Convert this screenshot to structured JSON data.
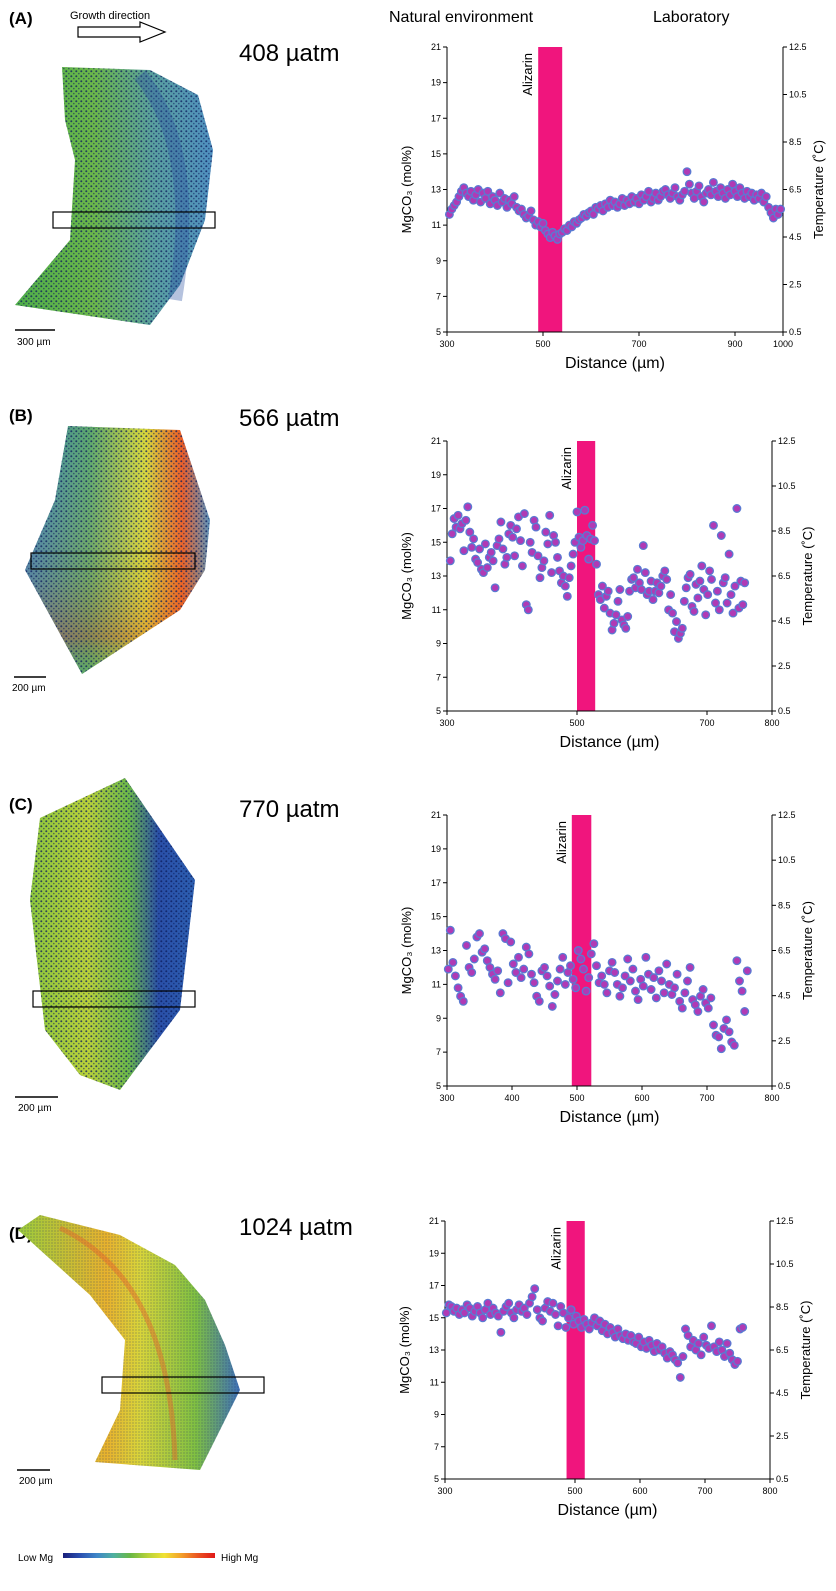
{
  "header": {
    "growth_direction": "Growth direction",
    "natural_environment": "Natural environment",
    "laboratory": "Laboratory"
  },
  "panels": [
    {
      "label": "(A)",
      "pco2": "408 µatm",
      "scale": "300 µm"
    },
    {
      "label": "(B)",
      "pco2": "566 µatm",
      "scale": "200 µm"
    },
    {
      "label": "(C)",
      "pco2": "770 µatm",
      "scale": "200 µm"
    },
    {
      "label": "(D)",
      "pco2": "1024 µatm",
      "scale": "200 µm"
    }
  ],
  "legend": {
    "low": "Low Mg",
    "high": "High Mg",
    "colors": [
      "#1a1f7a",
      "#2a4fb0",
      "#3e86c8",
      "#4fb0a0",
      "#6ab844",
      "#b7d23a",
      "#f0e234",
      "#f3a02a",
      "#ea5322",
      "#e01818"
    ]
  },
  "colors": {
    "alizarin": "#f0157d",
    "point_fill": "#b03ab5",
    "point_edge": "#5a7ad2"
  },
  "chart_data": [
    {
      "type": "scatter",
      "title": "",
      "xlabel": "Distance (µm)",
      "ylabel": "MgCO₃ (mol%)",
      "y2label": "Temperature (˚C)",
      "xlim": [
        300,
        1000
      ],
      "ylim": [
        5,
        21
      ],
      "x_ticks": [
        "300",
        "500",
        "700",
        "900",
        "1000"
      ],
      "y_ticks": [
        "5",
        "7",
        "9",
        "11",
        "13",
        "15",
        "17",
        "19",
        "21"
      ],
      "y2_ticks": [
        "0.5",
        "2.5",
        "4.5",
        "6.5",
        "8.5",
        "10.5",
        "12.5"
      ],
      "grid": false,
      "alizarin_band": {
        "label": "Alizarin",
        "x": [
          490,
          540
        ]
      },
      "x": [
        305,
        310,
        315,
        320,
        325,
        330,
        335,
        340,
        345,
        350,
        355,
        360,
        365,
        370,
        375,
        380,
        385,
        390,
        395,
        400,
        405,
        410,
        415,
        420,
        425,
        430,
        435,
        440,
        445,
        450,
        455,
        460,
        465,
        470,
        475,
        480,
        485,
        490,
        495,
        500,
        505,
        510,
        515,
        520,
        525,
        530,
        535,
        540,
        545,
        550,
        555,
        560,
        565,
        570,
        575,
        580,
        585,
        590,
        595,
        600,
        605,
        610,
        615,
        620,
        625,
        630,
        635,
        640,
        645,
        650,
        655,
        660,
        665,
        670,
        675,
        680,
        685,
        690,
        695,
        700,
        705,
        710,
        715,
        720,
        725,
        730,
        735,
        740,
        745,
        750,
        755,
        760,
        765,
        770,
        775,
        780,
        785,
        790,
        795,
        800,
        805,
        810,
        815,
        820,
        825,
        830,
        835,
        840,
        845,
        850,
        855,
        860,
        865,
        870,
        875,
        880,
        885,
        890,
        895,
        900,
        905,
        910,
        915,
        920,
        925,
        930,
        935,
        940,
        945,
        950,
        955,
        960,
        965,
        970,
        975,
        980,
        985,
        990,
        995
      ],
      "values": [
        11.6,
        11.9,
        12.1,
        12.3,
        12.6,
        12.9,
        13.1,
        12.8,
        12.6,
        12.9,
        12.4,
        12.7,
        13.0,
        12.3,
        12.8,
        12.5,
        12.9,
        12.2,
        12.6,
        12.4,
        12.1,
        12.8,
        12.3,
        12.5,
        12.0,
        12.4,
        12.2,
        12.6,
        12.0,
        11.8,
        11.9,
        11.6,
        11.4,
        11.5,
        11.8,
        11.3,
        11.0,
        11.2,
        10.9,
        11.1,
        10.7,
        10.5,
        10.3,
        10.6,
        10.4,
        10.2,
        10.5,
        10.6,
        10.8,
        10.7,
        11.0,
        10.9,
        11.2,
        11.1,
        11.3,
        11.4,
        11.6,
        11.5,
        11.7,
        11.8,
        11.6,
        12.0,
        11.9,
        12.1,
        11.8,
        12.2,
        12.0,
        12.4,
        12.1,
        12.3,
        12.0,
        12.2,
        12.5,
        12.1,
        12.4,
        12.2,
        12.6,
        12.3,
        12.5,
        12.2,
        12.7,
        12.4,
        12.6,
        12.9,
        12.3,
        12.5,
        12.8,
        12.4,
        12.6,
        12.9,
        13.0,
        12.7,
        12.5,
        12.8,
        13.1,
        12.6,
        12.4,
        12.7,
        12.9,
        14.0,
        13.3,
        12.8,
        12.5,
        12.9,
        13.2,
        12.6,
        12.3,
        12.8,
        13.0,
        12.7,
        13.4,
        12.9,
        12.6,
        13.1,
        12.8,
        12.5,
        13.0,
        12.7,
        13.3,
        12.9,
        12.6,
        13.1,
        12.8,
        12.5,
        12.9,
        12.6,
        12.8,
        12.4,
        12.7,
        12.5,
        12.8,
        12.3,
        12.6,
        12.0,
        11.7,
        11.4,
        11.9,
        11.6,
        11.9
      ]
    },
    {
      "type": "scatter",
      "title": "",
      "xlabel": "Distance (µm)",
      "ylabel": "MgCO₃ (mol%)",
      "y2label": "Temperature (˚C)",
      "xlim": [
        300,
        800
      ],
      "ylim": [
        5,
        21
      ],
      "x_ticks": [
        "300",
        "500",
        "700",
        "800"
      ],
      "y_ticks": [
        "5",
        "7",
        "9",
        "11",
        "13",
        "15",
        "17",
        "19",
        "21"
      ],
      "y2_ticks": [
        "0.5",
        "2.5",
        "4.5",
        "6.5",
        "8.5",
        "10.5",
        "12.5"
      ],
      "grid": false,
      "alizarin_band": {
        "label": "Alizarin",
        "x": [
          500,
          528
        ]
      },
      "x": [
        305,
        308,
        311,
        314,
        317,
        320,
        323,
        326,
        329,
        332,
        335,
        338,
        341,
        344,
        347,
        350,
        353,
        356,
        359,
        362,
        365,
        368,
        371,
        374,
        377,
        380,
        383,
        386,
        389,
        392,
        395,
        398,
        401,
        404,
        407,
        410,
        413,
        416,
        419,
        422,
        425,
        428,
        431,
        434,
        437,
        440,
        443,
        446,
        449,
        452,
        455,
        458,
        461,
        464,
        467,
        470,
        473,
        476,
        479,
        482,
        485,
        488,
        491,
        494,
        497,
        500,
        503,
        506,
        509,
        512,
        515,
        518,
        521,
        524,
        527,
        530,
        533,
        536,
        539,
        542,
        545,
        548,
        551,
        554,
        557,
        560,
        563,
        566,
        569,
        572,
        575,
        578,
        581,
        584,
        587,
        590,
        593,
        596,
        599,
        602,
        605,
        608,
        611,
        614,
        617,
        620,
        623,
        626,
        629,
        632,
        635,
        638,
        641,
        644,
        647,
        650,
        653,
        656,
        659,
        662,
        665,
        668,
        671,
        674,
        677,
        680,
        683,
        686,
        689,
        692,
        695,
        698,
        701,
        704,
        707,
        710,
        713,
        716,
        719,
        722,
        725,
        728,
        731,
        734,
        737,
        740,
        743,
        746,
        749,
        752,
        755,
        758
      ],
      "values": [
        13.9,
        15.5,
        16.4,
        15.9,
        16.6,
        15.8,
        16.1,
        14.5,
        16.3,
        17.1,
        15.6,
        14.7,
        15.2,
        14.0,
        13.8,
        14.6,
        13.4,
        13.2,
        14.9,
        13.5,
        14.1,
        14.4,
        13.9,
        12.3,
        14.8,
        15.2,
        16.2,
        14.6,
        13.7,
        14.1,
        15.5,
        16.0,
        15.3,
        14.2,
        15.8,
        16.5,
        15.1,
        13.6,
        16.7,
        11.3,
        11.0,
        15.0,
        14.4,
        16.3,
        15.9,
        14.2,
        12.9,
        13.5,
        13.9,
        15.6,
        14.9,
        16.6,
        13.2,
        15.4,
        15.0,
        14.1,
        13.3,
        12.6,
        13.0,
        12.4,
        11.8,
        12.9,
        13.6,
        14.3,
        15.0,
        16.8,
        15.3,
        14.7,
        15.1,
        16.9,
        15.4,
        14.0,
        15.2,
        16.0,
        15.1,
        13.7,
        11.9,
        11.6,
        12.4,
        11.1,
        11.8,
        12.1,
        10.8,
        9.8,
        10.2,
        10.7,
        11.5,
        12.2,
        10.4,
        10.1,
        9.9,
        10.6,
        12.1,
        12.8,
        12.9,
        12.3,
        13.4,
        12.6,
        12.2,
        14.8,
        13.2,
        11.9,
        12.1,
        12.7,
        11.6,
        12.1,
        12.6,
        12.0,
        12.4,
        13.0,
        13.3,
        12.8,
        11.0,
        11.9,
        10.8,
        9.7,
        10.3,
        9.3,
        9.6,
        9.9,
        11.5,
        12.3,
        12.9,
        13.1,
        11.2,
        10.9,
        12.5,
        11.7,
        12.7,
        13.6,
        12.2,
        10.7,
        11.9,
        13.3,
        12.8,
        16.0,
        11.4,
        12.1,
        11.0,
        15.4,
        12.6,
        12.9,
        11.4,
        14.3,
        11.9,
        10.8,
        12.4,
        17.0,
        11.1,
        12.7,
        11.3,
        12.6
      ]
    },
    {
      "type": "scatter",
      "title": "",
      "xlabel": "Distance (µm)",
      "ylabel": "MgCO₃ (mol%)",
      "y2label": "Temperature (˚C)",
      "xlim": [
        300,
        800
      ],
      "ylim": [
        5,
        21
      ],
      "x_ticks": [
        "300",
        "400",
        "500",
        "600",
        "700",
        "800"
      ],
      "y_ticks": [
        "5",
        "7",
        "9",
        "11",
        "13",
        "15",
        "17",
        "19",
        "21"
      ],
      "y2_ticks": [
        "0.5",
        "2.5",
        "4.5",
        "6.5",
        "8.5",
        "10.5",
        "12.5"
      ],
      "grid": false,
      "alizarin_band": {
        "label": "Alizarin",
        "x": [
          492,
          522
        ]
      },
      "x": [
        302,
        305,
        309,
        313,
        317,
        321,
        325,
        330,
        334,
        338,
        342,
        346,
        350,
        354,
        358,
        362,
        366,
        370,
        374,
        378,
        382,
        386,
        390,
        394,
        398,
        402,
        406,
        410,
        414,
        418,
        422,
        426,
        430,
        434,
        438,
        442,
        446,
        450,
        454,
        458,
        462,
        466,
        470,
        474,
        478,
        482,
        486,
        490,
        494,
        498,
        502,
        506,
        510,
        514,
        518,
        522,
        526,
        530,
        534,
        538,
        542,
        546,
        550,
        554,
        558,
        562,
        566,
        570,
        574,
        578,
        582,
        586,
        590,
        594,
        598,
        602,
        606,
        610,
        614,
        618,
        622,
        626,
        630,
        634,
        638,
        642,
        646,
        650,
        654,
        658,
        662,
        666,
        670,
        674,
        678,
        682,
        686,
        690,
        694,
        698,
        702,
        706,
        710,
        714,
        718,
        722,
        726,
        730,
        734,
        738,
        742,
        746,
        750,
        754,
        758,
        762
      ],
      "values": [
        11.9,
        14.2,
        12.3,
        11.5,
        10.8,
        10.3,
        10.0,
        13.3,
        12.0,
        11.7,
        12.5,
        13.8,
        14.0,
        12.9,
        13.1,
        12.4,
        12.0,
        11.6,
        11.3,
        11.8,
        10.5,
        14.0,
        13.7,
        11.1,
        13.5,
        12.2,
        11.7,
        12.6,
        11.4,
        11.9,
        13.2,
        12.8,
        11.6,
        11.1,
        10.3,
        10.0,
        11.8,
        12.0,
        11.5,
        10.9,
        9.7,
        10.4,
        11.2,
        11.9,
        12.6,
        11.0,
        11.7,
        12.1,
        11.3,
        10.8,
        13.0,
        12.5,
        11.9,
        10.6,
        11.4,
        12.8,
        13.4,
        12.1,
        11.1,
        11.5,
        11.0,
        10.5,
        11.8,
        12.3,
        11.7,
        11.0,
        10.3,
        10.8,
        11.5,
        12.5,
        11.2,
        11.9,
        10.6,
        10.1,
        11.3,
        10.9,
        12.6,
        11.6,
        10.7,
        11.4,
        10.2,
        11.8,
        11.2,
        10.5,
        12.2,
        11.0,
        10.4,
        10.8,
        11.6,
        10.0,
        9.6,
        10.5,
        11.2,
        12.0,
        10.1,
        9.8,
        9.4,
        10.3,
        10.7,
        9.9,
        9.6,
        10.2,
        8.6,
        8.0,
        7.9,
        7.2,
        8.4,
        8.9,
        8.2,
        7.6,
        7.4,
        12.4,
        11.2,
        10.6,
        9.4,
        11.8
      ]
    },
    {
      "type": "scatter",
      "title": "",
      "xlabel": "Distance (µm)",
      "ylabel": "MgCO₃ (mol%)",
      "y2label": "Temperature (˚C)",
      "xlim": [
        300,
        800
      ],
      "ylim": [
        5,
        21
      ],
      "x_ticks": [
        "300",
        "500",
        "600",
        "700",
        "800"
      ],
      "y_ticks": [
        "5",
        "7",
        "9",
        "11",
        "13",
        "15",
        "17",
        "19",
        "21"
      ],
      "y2_ticks": [
        "0.5",
        "2.5",
        "4.5",
        "6.5",
        "8.5",
        "10.5",
        "12.5"
      ],
      "grid": false,
      "alizarin_band": {
        "label": "Alizarin",
        "x": [
          487,
          515
        ]
      },
      "x": [
        302,
        306,
        310,
        314,
        318,
        322,
        326,
        330,
        334,
        338,
        342,
        346,
        350,
        354,
        358,
        362,
        366,
        370,
        374,
        378,
        382,
        386,
        390,
        394,
        398,
        402,
        406,
        410,
        414,
        418,
        422,
        426,
        430,
        434,
        438,
        442,
        446,
        450,
        454,
        458,
        462,
        466,
        470,
        474,
        478,
        482,
        486,
        490,
        494,
        498,
        502,
        506,
        510,
        514,
        518,
        522,
        526,
        530,
        534,
        538,
        542,
        546,
        550,
        554,
        558,
        562,
        566,
        570,
        574,
        578,
        582,
        586,
        590,
        594,
        598,
        602,
        606,
        610,
        614,
        618,
        622,
        626,
        630,
        634,
        638,
        642,
        646,
        650,
        654,
        658,
        662,
        666,
        670,
        674,
        678,
        682,
        686,
        690,
        694,
        698,
        702,
        706,
        710,
        714,
        718,
        722,
        726,
        730,
        734,
        738,
        742,
        746,
        750,
        754,
        758
      ],
      "values": [
        15.3,
        15.8,
        15.7,
        15.4,
        15.6,
        15.2,
        15.5,
        15.3,
        15.8,
        15.6,
        15.1,
        15.4,
        15.7,
        15.3,
        15.0,
        15.5,
        15.9,
        15.2,
        15.6,
        15.3,
        15.1,
        14.1,
        15.4,
        15.7,
        15.9,
        15.3,
        15.0,
        15.5,
        15.8,
        15.4,
        15.6,
        15.2,
        15.9,
        16.3,
        16.8,
        15.5,
        15.0,
        14.8,
        15.6,
        16.0,
        15.4,
        15.9,
        15.2,
        14.5,
        15.7,
        15.3,
        14.4,
        15.0,
        15.5,
        14.6,
        15.1,
        14.8,
        14.4,
        14.9,
        14.6,
        14.3,
        14.7,
        15.0,
        14.5,
        14.8,
        14.2,
        14.6,
        14.0,
        14.4,
        14.1,
        13.8,
        14.3,
        13.9,
        13.7,
        14.0,
        13.6,
        13.9,
        13.5,
        13.4,
        13.8,
        13.2,
        13.5,
        13.1,
        13.6,
        13.3,
        12.9,
        13.4,
        13.0,
        13.2,
        12.8,
        12.5,
        12.9,
        12.7,
        12.4,
        12.2,
        11.3,
        12.6,
        14.3,
        13.9,
        13.2,
        13.6,
        13.0,
        13.4,
        12.7,
        13.8,
        13.3,
        13.1,
        14.5,
        13.2,
        12.9,
        13.5,
        13.0,
        12.6,
        13.4,
        12.8,
        12.4,
        12.1,
        12.3,
        14.3,
        14.4
      ]
    }
  ]
}
